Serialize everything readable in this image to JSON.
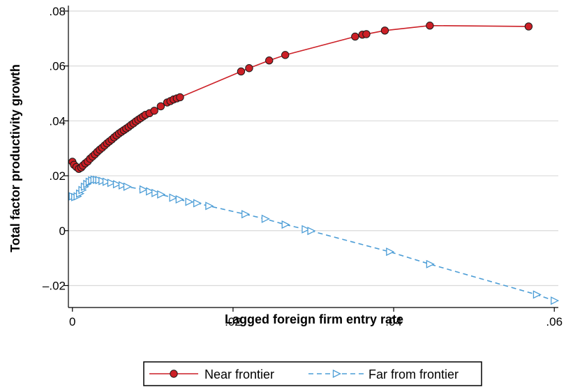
{
  "chart_data": {
    "type": "line",
    "title": "",
    "xlabel": "Lagged foreign firm entry rate",
    "ylabel": "Total factor productivity growth",
    "xlim": [
      -0.0005,
      0.0605
    ],
    "ylim": [
      -0.028,
      0.082
    ],
    "grid": "horizontal",
    "legend_position": "bottom",
    "x_ticks": [
      {
        "value": 0,
        "label": "0"
      },
      {
        "value": 0.02,
        "label": ".02"
      },
      {
        "value": 0.04,
        "label": ".04"
      },
      {
        "value": 0.06,
        "label": ".06"
      }
    ],
    "y_ticks": [
      {
        "value": -0.02,
        "label": "–.02"
      },
      {
        "value": 0,
        "label": "0"
      },
      {
        "value": 0.02,
        "label": ".02"
      },
      {
        "value": 0.04,
        "label": ".04"
      },
      {
        "value": 0.06,
        "label": ".06"
      },
      {
        "value": 0.08,
        "label": ".08"
      }
    ],
    "series": [
      {
        "name": "Near frontier",
        "color": "#cc1f26",
        "marker": "circle",
        "line_style": "solid",
        "points": [
          [
            0.0,
            0.0251
          ],
          [
            0.0002,
            0.024
          ],
          [
            0.0005,
            0.0232
          ],
          [
            0.0008,
            0.0225
          ],
          [
            0.0011,
            0.023
          ],
          [
            0.0013,
            0.0237
          ],
          [
            0.0016,
            0.0245
          ],
          [
            0.0019,
            0.0252
          ],
          [
            0.0022,
            0.0262
          ],
          [
            0.0025,
            0.027
          ],
          [
            0.0028,
            0.0278
          ],
          [
            0.0031,
            0.0287
          ],
          [
            0.0034,
            0.0295
          ],
          [
            0.0037,
            0.0302
          ],
          [
            0.004,
            0.031
          ],
          [
            0.0043,
            0.0318
          ],
          [
            0.0046,
            0.0325
          ],
          [
            0.0049,
            0.0332
          ],
          [
            0.0052,
            0.034
          ],
          [
            0.0055,
            0.0347
          ],
          [
            0.0058,
            0.0354
          ],
          [
            0.0061,
            0.036
          ],
          [
            0.0064,
            0.0366
          ],
          [
            0.0067,
            0.0372
          ],
          [
            0.007,
            0.0378
          ],
          [
            0.0073,
            0.0385
          ],
          [
            0.0076,
            0.0391
          ],
          [
            0.0079,
            0.0398
          ],
          [
            0.0082,
            0.0404
          ],
          [
            0.0085,
            0.041
          ],
          [
            0.0088,
            0.0416
          ],
          [
            0.0091,
            0.0422
          ],
          [
            0.0096,
            0.0428
          ],
          [
            0.0102,
            0.0437
          ],
          [
            0.011,
            0.0453
          ],
          [
            0.0118,
            0.0467
          ],
          [
            0.0122,
            0.0472
          ],
          [
            0.0126,
            0.0478
          ],
          [
            0.013,
            0.0482
          ],
          [
            0.0134,
            0.0486
          ],
          [
            0.021,
            0.058
          ],
          [
            0.022,
            0.0592
          ],
          [
            0.0245,
            0.062
          ],
          [
            0.0265,
            0.064
          ],
          [
            0.0352,
            0.0707
          ],
          [
            0.0361,
            0.0714
          ],
          [
            0.0366,
            0.0716
          ],
          [
            0.0389,
            0.0729
          ],
          [
            0.0445,
            0.0747
          ],
          [
            0.0568,
            0.0744
          ]
        ]
      },
      {
        "name": "Far from frontier",
        "color": "#4c9dd6",
        "marker": "triangle-right",
        "line_style": "dashed",
        "points": [
          [
            0.0,
            0.0125
          ],
          [
            0.0003,
            0.0122
          ],
          [
            0.0006,
            0.0125
          ],
          [
            0.0009,
            0.0135
          ],
          [
            0.0012,
            0.0148
          ],
          [
            0.0015,
            0.016
          ],
          [
            0.0018,
            0.017
          ],
          [
            0.0021,
            0.0178
          ],
          [
            0.0024,
            0.0183
          ],
          [
            0.0027,
            0.0186
          ],
          [
            0.003,
            0.0185
          ],
          [
            0.0033,
            0.0184
          ],
          [
            0.0037,
            0.0181
          ],
          [
            0.0042,
            0.0178
          ],
          [
            0.0048,
            0.0174
          ],
          [
            0.0055,
            0.0169
          ],
          [
            0.0062,
            0.0165
          ],
          [
            0.0068,
            0.016
          ],
          [
            0.0088,
            0.015
          ],
          [
            0.0096,
            0.0143
          ],
          [
            0.0103,
            0.0137
          ],
          [
            0.011,
            0.0132
          ],
          [
            0.0125,
            0.012
          ],
          [
            0.0133,
            0.0114
          ],
          [
            0.0145,
            0.0105
          ],
          [
            0.0155,
            0.01
          ],
          [
            0.017,
            0.009
          ],
          [
            0.0215,
            0.006
          ],
          [
            0.024,
            0.0043
          ],
          [
            0.0265,
            0.0022
          ],
          [
            0.029,
            0.0005
          ],
          [
            0.0297,
            -0.0001
          ],
          [
            0.0395,
            -0.0077
          ],
          [
            0.0445,
            -0.0122
          ],
          [
            0.0578,
            -0.0233
          ],
          [
            0.06,
            -0.0255
          ]
        ]
      }
    ]
  }
}
